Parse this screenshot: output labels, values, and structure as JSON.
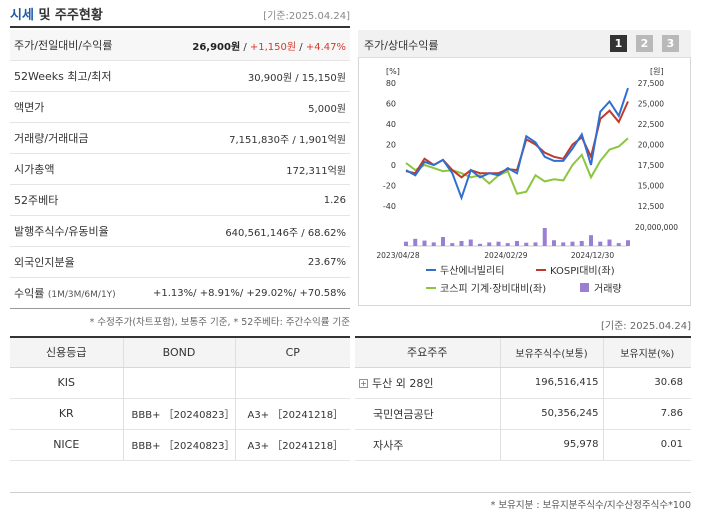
{
  "header": {
    "title_accent": "시세",
    "title_rest": " 및 주주현황",
    "basis": "[기준:2025.04.24]"
  },
  "info": [
    {
      "label": "주가/전일대비/수익률",
      "price": "26,900원",
      "change": "+1,150원",
      "rate": "+4.47%"
    },
    {
      "label": "52Weeks 최고/최저",
      "value": "30,900원 / 15,150원"
    },
    {
      "label": "액면가",
      "value": "5,000원"
    },
    {
      "label": "거래량/거래대금",
      "value": "7,151,830주 / 1,901억원"
    },
    {
      "label": "시가총액",
      "value": "172,311억원"
    },
    {
      "label": "52주베타",
      "value": "1.26"
    },
    {
      "label": "발행주식수/유동비율",
      "value": "640,561,146주 / 68.62%"
    },
    {
      "label": "외국인지분율",
      "value": "23.67%"
    },
    {
      "label": "수익률",
      "label_small": "(1M/3M/6M/1Y)",
      "r1": "+1.13%",
      "r2": "+8.91%",
      "r3": "+29.02%",
      "r4": "+70.58%"
    }
  ],
  "footnote1": "* 수정주가(차트포함), 보통주 기준, * 52주베타: 주간수익률 기준",
  "chart_panel": {
    "title": "주가/상대수익률",
    "tabs": [
      "1",
      "2",
      "3"
    ],
    "active_tab": "1"
  },
  "chart_data": {
    "type": "line",
    "left_unit": "[%]",
    "right_unit": "[원]",
    "volume_unit": "20,000,000",
    "left_ticks": [
      "80",
      "60",
      "40",
      "20",
      "0",
      "-20",
      "-40"
    ],
    "right_ticks": [
      "27,500",
      "25,000",
      "22,500",
      "20,000",
      "17,500",
      "15,000",
      "12,500"
    ],
    "x_labels": [
      "2023/04/28",
      "2024/02/29",
      "2024/12/30"
    ],
    "legend": [
      "두산에너빌리티",
      "KOSPI대비(좌)",
      "코스피 기계·장비대비(좌)",
      "거래량"
    ],
    "colors": {
      "stock": "#2f6fd0",
      "kospi": "#c0392b",
      "sector": "#8cc63f",
      "volume": "#9b7fd4"
    },
    "series": [
      {
        "name": "두산에너빌리티",
        "values": [
          -5,
          -10,
          3,
          0,
          5,
          -8,
          -32,
          -5,
          -12,
          -8,
          -10,
          -3,
          -8,
          28,
          22,
          8,
          4,
          4,
          16,
          30,
          0,
          52,
          62,
          48,
          75
        ]
      },
      {
        "name": "KOSPI대비(좌)",
        "values": [
          -6,
          -8,
          6,
          0,
          5,
          -5,
          -12,
          -5,
          -8,
          -8,
          -8,
          -4,
          -5,
          25,
          20,
          12,
          8,
          6,
          20,
          27,
          8,
          45,
          53,
          42,
          62
        ]
      },
      {
        "name": "코스피 기계·장비대비(좌)",
        "values": [
          2,
          -5,
          0,
          -3,
          -6,
          -5,
          -8,
          -12,
          -10,
          -18,
          -10,
          -6,
          -28,
          -26,
          -10,
          -16,
          -14,
          -15,
          0,
          10,
          -12,
          4,
          15,
          18,
          26
        ]
      }
    ],
    "volume": [
      12,
      20,
      15,
      10,
      25,
      8,
      14,
      18,
      6,
      10,
      12,
      8,
      14,
      9,
      10,
      50,
      16,
      10,
      12,
      14,
      30,
      12,
      18,
      8,
      16
    ]
  },
  "basis_mid": "[기준: 2025.04.24]",
  "credit": {
    "headers": [
      "신용등급",
      "BOND",
      "CP"
    ],
    "rows": [
      [
        "KIS",
        "",
        ""
      ],
      [
        "KR",
        "BBB+ ［20240823］",
        "A3+ ［20241218］"
      ],
      [
        "NICE",
        "BBB+ ［20240823］",
        "A3+ ［20241218］"
      ]
    ]
  },
  "holders": {
    "headers": [
      "주요주주",
      "보유주식수(보통)",
      "보유지분(%)"
    ],
    "rows": [
      [
        "두산 외 28인",
        "196,516,415",
        "30.68"
      ],
      [
        "국민연금공단",
        "50,356,245",
        "7.86"
      ],
      [
        "자사주",
        "95,978",
        "0.01"
      ]
    ]
  },
  "footnote2": "* 보유지분 : 보유지분주식수/지수산정주식수*100"
}
